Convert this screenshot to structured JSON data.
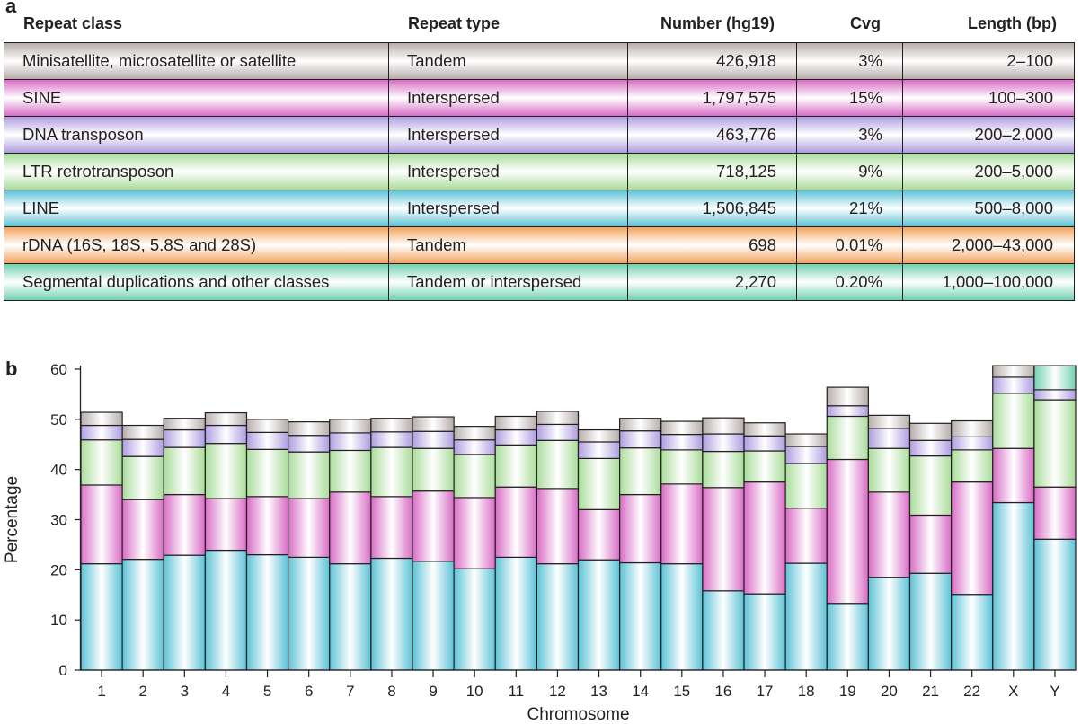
{
  "panel_labels": {
    "a": "a",
    "b": "b"
  },
  "table": {
    "headers": [
      "Repeat class",
      "Repeat type",
      "Number (hg19)",
      "Cvg",
      "Length (bp)"
    ],
    "rows": [
      {
        "repeat_class": "Minisatellite, microsatellite or satellite",
        "repeat_type": "Tandem",
        "number": "426,918",
        "cvg": "3%",
        "length": "2–100",
        "color": "#b6adaa"
      },
      {
        "repeat_class": "SINE",
        "repeat_type": "Interspersed",
        "number": "1,797,575",
        "cvg": "15%",
        "length": "100–300",
        "color": "#d86cc5"
      },
      {
        "repeat_class": "DNA transposon",
        "repeat_type": "Interspersed",
        "number": "463,776",
        "cvg": "3%",
        "length": "200–2,000",
        "color": "#ad9ddf"
      },
      {
        "repeat_class": "LTR retrotransposon",
        "repeat_type": "Interspersed",
        "number": "718,125",
        "cvg": "9%",
        "length": "200–5,000",
        "color": "#a9dc9a"
      },
      {
        "repeat_class": "LINE",
        "repeat_type": "Interspersed",
        "number": "1,506,845",
        "cvg": "21%",
        "length": "500–8,000",
        "color": "#5cc2d6"
      },
      {
        "repeat_class": "rDNA (16S, 18S, 5.8S and 28S)",
        "repeat_type": "Tandem",
        "number": "698",
        "cvg": "0.01%",
        "length": "2,000–43,000",
        "color": "#f2a35c"
      },
      {
        "repeat_class": "Segmental duplications and other classes",
        "repeat_type": "Tandem or interspersed",
        "number": "2,270",
        "cvg": "0.20%",
        "length": "1,000–100,000",
        "color": "#71d1b0"
      }
    ]
  },
  "chart_data": {
    "type": "bar",
    "stacked": true,
    "title": "",
    "xlabel": "Chromosome",
    "ylabel": "Percentage",
    "ylim": [
      0,
      60
    ],
    "yticks": [
      0,
      10,
      20,
      30,
      40,
      50,
      60
    ],
    "grid": false,
    "categories": [
      "1",
      "2",
      "3",
      "4",
      "5",
      "6",
      "7",
      "8",
      "9",
      "10",
      "11",
      "12",
      "13",
      "14",
      "15",
      "16",
      "17",
      "18",
      "19",
      "20",
      "21",
      "22",
      "X",
      "Y"
    ],
    "series": [
      {
        "name": "LINE",
        "color": "#5cc2d6",
        "values": [
          21.2,
          22.1,
          22.9,
          23.9,
          23.0,
          22.5,
          21.2,
          22.3,
          21.7,
          20.2,
          22.5,
          21.2,
          22.0,
          21.4,
          21.2,
          15.8,
          15.2,
          21.3,
          13.3,
          18.5,
          19.3,
          15.1,
          33.4,
          26.1
        ]
      },
      {
        "name": "SINE",
        "color": "#d86cc5",
        "values": [
          15.7,
          11.9,
          12.1,
          10.3,
          11.6,
          11.7,
          14.3,
          12.3,
          14.0,
          14.2,
          14.0,
          15.0,
          10.0,
          13.6,
          15.9,
          20.6,
          22.3,
          11.0,
          28.7,
          17.0,
          11.6,
          22.4,
          10.8,
          10.4
        ]
      },
      {
        "name": "LTR retrotransposon",
        "color": "#a9dc9a",
        "values": [
          9.0,
          8.6,
          9.4,
          11.0,
          9.4,
          9.3,
          8.3,
          9.8,
          8.5,
          8.6,
          8.4,
          9.6,
          10.2,
          9.3,
          6.8,
          7.2,
          6.2,
          8.9,
          8.6,
          8.7,
          11.8,
          6.4,
          11.0,
          17.4
        ]
      },
      {
        "name": "DNA transposon",
        "color": "#ad9ddf",
        "values": [
          2.9,
          3.4,
          3.5,
          3.6,
          3.4,
          3.3,
          3.5,
          3.1,
          3.4,
          2.9,
          3.0,
          3.2,
          3.3,
          3.4,
          3.1,
          3.5,
          3.0,
          3.4,
          2.1,
          4.0,
          3.1,
          2.6,
          3.2,
          2.0
        ]
      },
      {
        "name": "Minisatellite, microsatellite or satellite",
        "color": "#b6adaa",
        "values": [
          2.6,
          2.8,
          2.3,
          2.5,
          2.6,
          2.7,
          2.7,
          2.7,
          2.9,
          2.7,
          2.7,
          2.6,
          2.4,
          2.5,
          2.6,
          3.2,
          2.6,
          2.5,
          3.7,
          2.6,
          3.4,
          3.2,
          2.3,
          0
        ]
      },
      {
        "name": "Segmental duplications and other classes",
        "color": "#71d1b0",
        "values": [
          0,
          0,
          0,
          0,
          0,
          0,
          0,
          0,
          0,
          0,
          0,
          0,
          0,
          0,
          0,
          0,
          0,
          0,
          0,
          0,
          0,
          0,
          0,
          4.8
        ]
      }
    ]
  }
}
